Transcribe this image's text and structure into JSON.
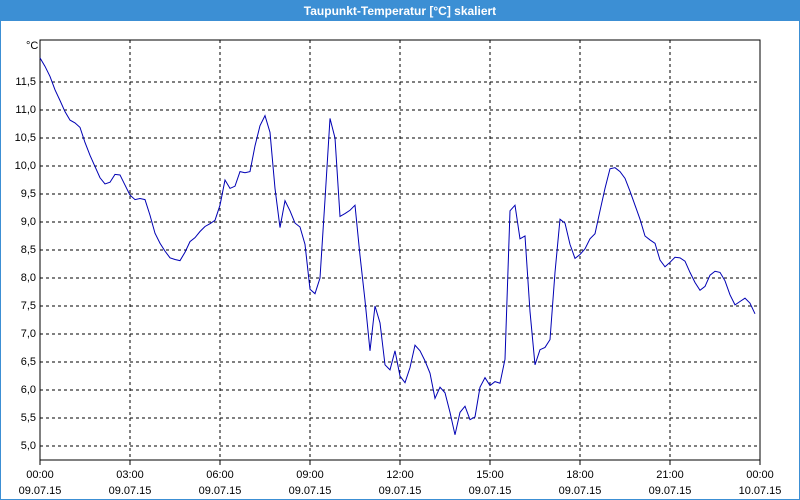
{
  "chart_data": {
    "type": "line",
    "title": "Taupunkt-Temperatur [°C] skaliert",
    "y_label": "°C",
    "x": [
      0,
      10,
      20,
      30,
      40,
      50,
      60,
      70,
      80,
      90,
      100,
      110,
      120,
      130,
      140,
      150,
      160,
      170,
      180,
      190,
      200,
      210,
      220,
      230,
      240,
      250,
      260,
      270,
      280,
      290,
      300,
      310,
      320,
      330,
      340,
      350,
      360,
      370,
      380,
      390,
      400,
      410,
      420,
      430,
      440,
      450,
      460,
      470,
      480,
      490,
      500,
      510,
      520,
      530,
      540,
      550,
      560,
      570,
      580,
      590,
      600,
      610,
      620,
      630,
      640,
      650,
      660,
      670,
      680,
      690,
      700,
      710,
      720,
      730,
      740,
      750,
      760,
      770,
      780,
      790,
      800,
      810,
      820,
      830,
      840,
      850,
      860,
      870,
      880,
      890,
      900,
      910,
      920,
      930,
      940,
      950,
      960,
      970,
      980,
      990,
      1000,
      1010,
      1020,
      1030,
      1040,
      1050,
      1060,
      1070,
      1080,
      1090,
      1100,
      1110,
      1120,
      1130,
      1140,
      1150,
      1160,
      1170,
      1180,
      1190,
      1200,
      1210,
      1220,
      1230,
      1240,
      1250,
      1260,
      1270,
      1280,
      1290,
      1300,
      1310,
      1320,
      1330,
      1340,
      1350,
      1360,
      1370,
      1380,
      1390,
      1400,
      1410,
      1420,
      1430
    ],
    "values": [
      11.93,
      11.78,
      11.6,
      11.36,
      11.17,
      10.97,
      10.82,
      10.77,
      10.69,
      10.42,
      10.19,
      9.99,
      9.79,
      9.68,
      9.71,
      9.85,
      9.84,
      9.66,
      9.48,
      9.4,
      9.42,
      9.4,
      9.12,
      8.8,
      8.62,
      8.48,
      8.36,
      8.33,
      8.31,
      8.46,
      8.65,
      8.72,
      8.83,
      8.92,
      8.97,
      9.03,
      9.3,
      9.75,
      9.6,
      9.64,
      9.9,
      9.88,
      9.9,
      10.36,
      10.72,
      10.9,
      10.6,
      9.6,
      8.9,
      9.38,
      9.2,
      8.98,
      8.91,
      8.6,
      7.8,
      7.72,
      8.0,
      9.4,
      10.85,
      10.5,
      9.1,
      9.15,
      9.21,
      9.3,
      8.4,
      7.6,
      6.7,
      7.5,
      7.2,
      6.45,
      6.36,
      6.7,
      6.25,
      6.13,
      6.4,
      6.8,
      6.7,
      6.52,
      6.3,
      5.85,
      6.05,
      5.95,
      5.6,
      5.2,
      5.6,
      5.71,
      5.47,
      5.52,
      6.05,
      6.22,
      6.08,
      6.15,
      6.12,
      6.55,
      9.2,
      9.3,
      8.7,
      8.75,
      7.4,
      6.45,
      6.72,
      6.76,
      6.9,
      8.1,
      9.05,
      8.98,
      8.6,
      8.35,
      8.42,
      8.52,
      8.7,
      8.79,
      9.2,
      9.6,
      9.95,
      9.97,
      9.9,
      9.78,
      9.55,
      9.3,
      9.05,
      8.75,
      8.68,
      8.62,
      8.32,
      8.2,
      8.28,
      8.37,
      8.36,
      8.3,
      8.1,
      7.92,
      7.78,
      7.85,
      8.05,
      8.12,
      8.1,
      7.95,
      7.7,
      7.52,
      7.58,
      7.64,
      7.55,
      7.36
    ],
    "color": "#0000b4",
    "xlim": [
      0,
      1440
    ],
    "xticks": [
      {
        "value": 0,
        "label": "00:00",
        "date": "09.07.15"
      },
      {
        "value": 180,
        "label": "03:00",
        "date": "09.07.15"
      },
      {
        "value": 360,
        "label": "06:00",
        "date": "09.07.15"
      },
      {
        "value": 540,
        "label": "09:00",
        "date": "09.07.15"
      },
      {
        "value": 720,
        "label": "12:00",
        "date": "09.07.15"
      },
      {
        "value": 900,
        "label": "15:00",
        "date": "09.07.15"
      },
      {
        "value": 1080,
        "label": "18:00",
        "date": "09.07.15"
      },
      {
        "value": 1260,
        "label": "21:00",
        "date": "09.07.15"
      },
      {
        "value": 1440,
        "label": "00:00",
        "date": "10.07.15"
      }
    ],
    "ylim": [
      4.75,
      12.25
    ],
    "yticks": [
      {
        "value": 5,
        "label": "5,0"
      },
      {
        "value": 5.5,
        "label": "5,5"
      },
      {
        "value": 6,
        "label": "6,0"
      },
      {
        "value": 6.5,
        "label": "6,5"
      },
      {
        "value": 7,
        "label": "7,0"
      },
      {
        "value": 7.5,
        "label": "7,5"
      },
      {
        "value": 8,
        "label": "8,0"
      },
      {
        "value": 8.5,
        "label": "8,5"
      },
      {
        "value": 9,
        "label": "9,0"
      },
      {
        "value": 9.5,
        "label": "9,5"
      },
      {
        "value": 10,
        "label": "10,0"
      },
      {
        "value": 10.5,
        "label": "10,5"
      },
      {
        "value": 11,
        "label": "11,0"
      },
      {
        "value": 11.5,
        "label": "11,5"
      }
    ],
    "grid": true
  }
}
